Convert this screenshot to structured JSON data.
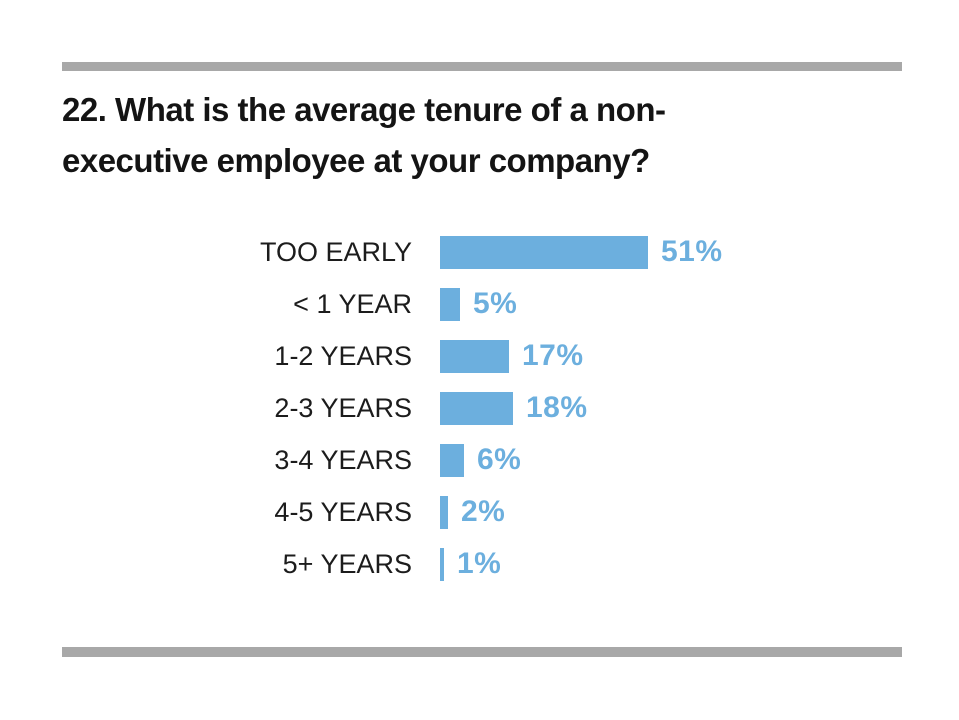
{
  "page": {
    "background": "#ffffff"
  },
  "decor": {
    "top_rule_color": "#a8a8a8",
    "bottom_rule_color": "#a8a8a8"
  },
  "title": {
    "lines": [
      "22. What is the average tenure of a non-",
      "executive employee at your company?"
    ]
  },
  "chart_data": {
    "type": "bar",
    "orientation": "horizontal",
    "title": "22. What is the average tenure of a non-executive employee at your company?",
    "categories": [
      "TOO EARLY",
      "< 1 YEAR",
      "1-2 YEARS",
      "2-3 YEARS",
      "3-4 YEARS",
      "4-5 YEARS",
      "5+ YEARS"
    ],
    "values": [
      51,
      5,
      17,
      18,
      6,
      2,
      1
    ],
    "value_labels": [
      "51%",
      "5%",
      "17%",
      "18%",
      "6%",
      "2%",
      "1%"
    ],
    "unit": "%",
    "xlim": [
      0,
      55
    ],
    "grid": false,
    "legend": false,
    "bar_color": "#6cafde",
    "value_label_color": "#6cafde",
    "category_label_color": "#1c1c1c"
  }
}
